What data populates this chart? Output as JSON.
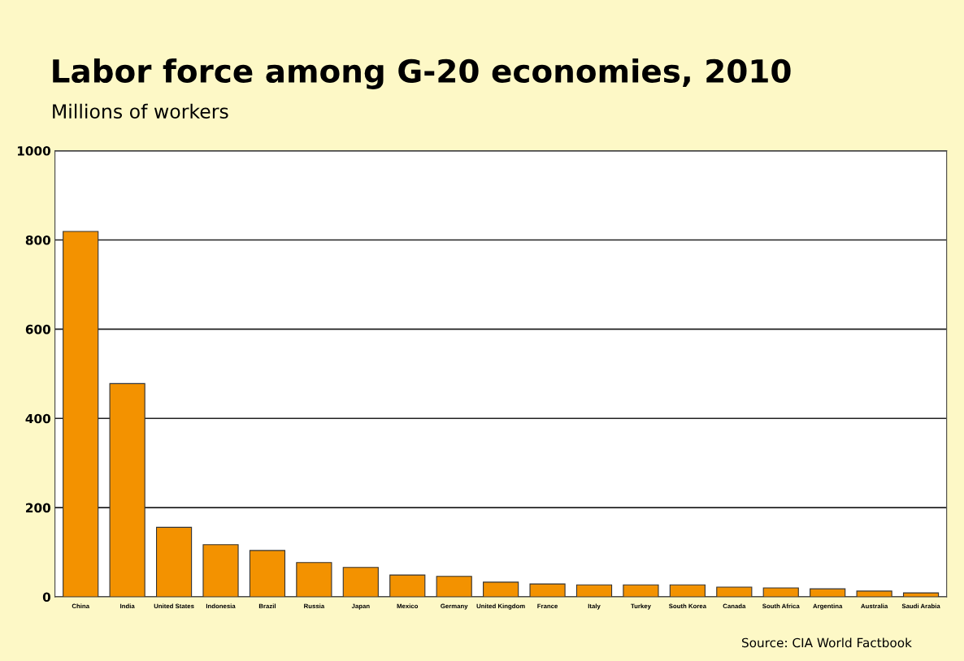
{
  "chart_data": {
    "type": "bar",
    "title": "Labor force among G-20 economies, 2010",
    "subtitle": "Millions of workers",
    "categories": [
      "China",
      "India",
      "United States",
      "Indonesia",
      "Brazil",
      "Russia",
      "Japan",
      "Mexico",
      "Germany",
      "United Kingdom",
      "France",
      "Italy",
      "Turkey",
      "South Korea",
      "Canada",
      "South Africa",
      "Argentina",
      "Australia",
      "Saudi Arabia"
    ],
    "values": [
      819,
      478,
      156,
      117,
      104,
      77,
      66,
      49,
      46,
      33,
      29,
      27,
      27,
      27,
      22,
      20,
      18,
      13,
      9
    ],
    "color": "#f39200",
    "ylim": [
      0,
      1000
    ],
    "yticks": [
      0,
      200,
      400,
      600,
      800,
      1000
    ],
    "grid": "y",
    "annotations": [
      "Source: CIA World Factbook"
    ]
  }
}
